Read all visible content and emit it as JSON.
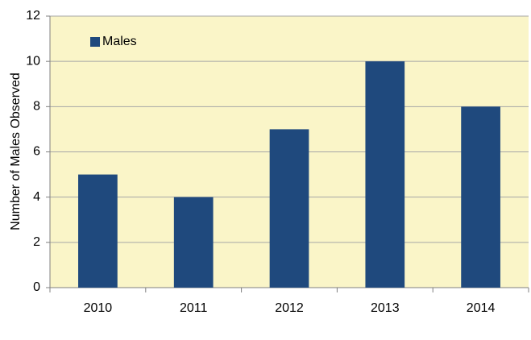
{
  "chart_data": {
    "type": "bar",
    "y_label": "Number of Males Observed",
    "categories": [
      "2010",
      "2011",
      "2012",
      "2013",
      "2014"
    ],
    "series": [
      {
        "name": "Males",
        "color": "#1f497d",
        "values": [
          5,
          4,
          7,
          10,
          8
        ]
      }
    ],
    "ylim": [
      0,
      12
    ],
    "yticks": [
      0,
      2,
      4,
      6,
      8,
      10,
      12
    ],
    "grid": true,
    "legend": "upper left",
    "plot_background": "#faf5c8"
  }
}
